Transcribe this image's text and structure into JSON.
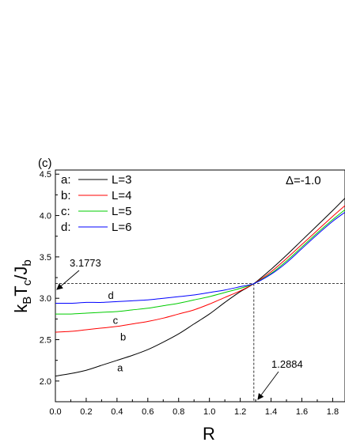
{
  "chart_data": {
    "type": "line",
    "panel_label": "(c)",
    "annotation": "Δ=-1.0",
    "xlabel": "R",
    "ylabel_parts": {
      "k": "k",
      "B": "B",
      "T": "T",
      "c": "c",
      "slash": "/J",
      "b": "b"
    },
    "xlim": [
      0.0,
      1.88
    ],
    "ylim": [
      1.75,
      4.55
    ],
    "xticks": [
      "0.0",
      "0.2",
      "0.4",
      "0.6",
      "0.8",
      "1.0",
      "1.2",
      "1.4",
      "1.6",
      "1.8"
    ],
    "yticks": [
      "2.0",
      "2.5",
      "3.0",
      "3.5",
      "4.0",
      "4.5"
    ],
    "legend": [
      {
        "key": "a:",
        "name": "L=3",
        "color": "#000000"
      },
      {
        "key": "b:",
        "name": "L=4",
        "color": "#ff0000"
      },
      {
        "key": "c:",
        "name": "L=5",
        "color": "#00cc00"
      },
      {
        "key": "d:",
        "name": "L=6",
        "color": "#0000ff"
      }
    ],
    "series": [
      {
        "id": "a",
        "label": "a",
        "color": "#000000",
        "x": [
          0.0,
          0.1,
          0.2,
          0.3,
          0.4,
          0.5,
          0.6,
          0.7,
          0.8,
          0.9,
          1.0,
          1.1,
          1.2,
          1.2884,
          1.4,
          1.5,
          1.6,
          1.7,
          1.8,
          1.88
        ],
        "y": [
          2.06,
          2.09,
          2.13,
          2.19,
          2.25,
          2.31,
          2.38,
          2.47,
          2.57,
          2.69,
          2.81,
          2.95,
          3.08,
          3.1773,
          3.35,
          3.52,
          3.7,
          3.88,
          4.06,
          4.21
        ]
      },
      {
        "id": "b",
        "label": "b",
        "color": "#ff0000",
        "x": [
          0.0,
          0.1,
          0.2,
          0.3,
          0.4,
          0.5,
          0.6,
          0.7,
          0.8,
          0.9,
          1.0,
          1.1,
          1.2,
          1.2884,
          1.4,
          1.5,
          1.6,
          1.7,
          1.8,
          1.88
        ],
        "y": [
          2.59,
          2.6,
          2.62,
          2.64,
          2.66,
          2.69,
          2.72,
          2.76,
          2.81,
          2.86,
          2.93,
          3.01,
          3.09,
          3.1773,
          3.32,
          3.48,
          3.65,
          3.82,
          3.99,
          4.12
        ]
      },
      {
        "id": "c",
        "label": "c",
        "color": "#00cc00",
        "x": [
          0.0,
          0.1,
          0.2,
          0.3,
          0.4,
          0.5,
          0.6,
          0.7,
          0.8,
          0.9,
          1.0,
          1.1,
          1.2,
          1.2884,
          1.4,
          1.5,
          1.6,
          1.7,
          1.8,
          1.88
        ],
        "y": [
          2.81,
          2.81,
          2.82,
          2.83,
          2.84,
          2.86,
          2.88,
          2.91,
          2.94,
          2.98,
          3.02,
          3.07,
          3.12,
          3.1773,
          3.3,
          3.45,
          3.62,
          3.79,
          3.95,
          4.07
        ]
      },
      {
        "id": "d",
        "label": "d",
        "color": "#0000ff",
        "x": [
          0.0,
          0.1,
          0.2,
          0.3,
          0.4,
          0.5,
          0.6,
          0.7,
          0.8,
          0.9,
          1.0,
          1.1,
          1.2,
          1.2884,
          1.4,
          1.5,
          1.6,
          1.7,
          1.8,
          1.88
        ],
        "y": [
          2.94,
          2.94,
          2.95,
          2.95,
          2.96,
          2.97,
          2.98,
          3.0,
          3.02,
          3.04,
          3.07,
          3.1,
          3.14,
          3.1773,
          3.29,
          3.43,
          3.6,
          3.77,
          3.93,
          4.04
        ]
      }
    ],
    "curve_labels": [
      {
        "text": "a",
        "x": 0.42,
        "y": 2.12
      },
      {
        "text": "b",
        "x": 0.44,
        "y": 2.49
      },
      {
        "text": "c",
        "x": 0.39,
        "y": 2.69
      },
      {
        "text": "d",
        "x": 0.36,
        "y": 2.99
      }
    ],
    "crossing": {
      "x": 1.2884,
      "y": 3.1773
    },
    "crossing_labels": {
      "y_value": "3.1773",
      "x_value": "1.2884"
    }
  }
}
